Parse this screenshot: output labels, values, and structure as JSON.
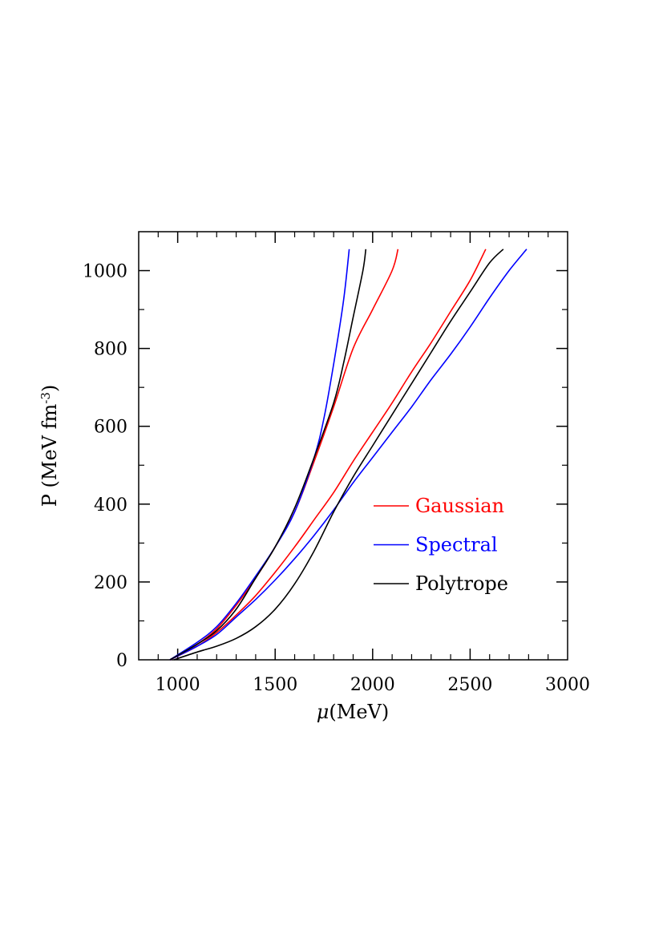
{
  "chart_data": {
    "type": "line",
    "xlabel_symbol": "μ",
    "xlabel_unit": "(MeV)",
    "ylabel_main": "P  (MeV fm",
    "ylabel_exp": "-3",
    "ylabel_close": ")",
    "xlim": [
      800,
      3000
    ],
    "ylim": [
      0,
      1100
    ],
    "xticks": [
      1000,
      1500,
      2000,
      2500,
      3000
    ],
    "yticks": [
      0,
      200,
      400,
      600,
      800,
      1000
    ],
    "legend_position": "lower-right",
    "series": [
      {
        "name": "Gaussian",
        "color": "#ff0000",
        "curves": [
          [
            [
              960,
              0
            ],
            [
              1100,
              40
            ],
            [
              1200,
              80
            ],
            [
              1300,
              140
            ],
            [
              1400,
              210
            ],
            [
              1500,
              290
            ],
            [
              1600,
              380
            ],
            [
              1700,
              510
            ],
            [
              1800,
              650
            ],
            [
              1900,
              800
            ],
            [
              2000,
              900
            ],
            [
              2100,
              1000
            ],
            [
              2130,
              1055
            ]
          ],
          [
            [
              960,
              0
            ],
            [
              1100,
              35
            ],
            [
              1200,
              70
            ],
            [
              1300,
              115
            ],
            [
              1400,
              165
            ],
            [
              1500,
              225
            ],
            [
              1600,
              290
            ],
            [
              1700,
              360
            ],
            [
              1800,
              430
            ],
            [
              1900,
              510
            ],
            [
              2000,
              585
            ],
            [
              2100,
              660
            ],
            [
              2200,
              740
            ],
            [
              2300,
              815
            ],
            [
              2400,
              895
            ],
            [
              2500,
              975
            ],
            [
              2580,
              1055
            ]
          ]
        ]
      },
      {
        "name": "Spectral",
        "color": "#0000ff",
        "curves": [
          [
            [
              960,
              0
            ],
            [
              1100,
              45
            ],
            [
              1200,
              85
            ],
            [
              1300,
              145
            ],
            [
              1400,
              215
            ],
            [
              1500,
              290
            ],
            [
              1600,
              380
            ],
            [
              1700,
              520
            ],
            [
              1750,
              620
            ],
            [
              1800,
              760
            ],
            [
              1850,
              920
            ],
            [
              1880,
              1055
            ]
          ],
          [
            [
              960,
              0
            ],
            [
              1100,
              35
            ],
            [
              1200,
              65
            ],
            [
              1300,
              110
            ],
            [
              1400,
              155
            ],
            [
              1500,
              205
            ],
            [
              1600,
              260
            ],
            [
              1700,
              320
            ],
            [
              1800,
              385
            ],
            [
              1900,
              455
            ],
            [
              2000,
              520
            ],
            [
              2100,
              585
            ],
            [
              2200,
              650
            ],
            [
              2300,
              720
            ],
            [
              2400,
              785
            ],
            [
              2500,
              855
            ],
            [
              2600,
              930
            ],
            [
              2700,
              1000
            ],
            [
              2790,
              1055
            ]
          ]
        ]
      },
      {
        "name": "Polytrope",
        "color": "#000000",
        "curves": [
          [
            [
              960,
              0
            ],
            [
              1100,
              40
            ],
            [
              1200,
              75
            ],
            [
              1300,
              130
            ],
            [
              1400,
              210
            ],
            [
              1500,
              290
            ],
            [
              1600,
              390
            ],
            [
              1700,
              520
            ],
            [
              1800,
              660
            ],
            [
              1850,
              760
            ],
            [
              1900,
              880
            ],
            [
              1950,
              1000
            ],
            [
              1965,
              1055
            ]
          ],
          [
            [
              980,
              0
            ],
            [
              1100,
              20
            ],
            [
              1200,
              35
            ],
            [
              1300,
              55
            ],
            [
              1400,
              85
            ],
            [
              1500,
              130
            ],
            [
              1600,
              195
            ],
            [
              1700,
              280
            ],
            [
              1800,
              380
            ],
            [
              1900,
              470
            ],
            [
              2000,
              550
            ],
            [
              2100,
              630
            ],
            [
              2200,
              710
            ],
            [
              2300,
              790
            ],
            [
              2400,
              870
            ],
            [
              2500,
              945
            ],
            [
              2600,
              1020
            ],
            [
              2670,
              1055
            ]
          ]
        ]
      }
    ]
  }
}
